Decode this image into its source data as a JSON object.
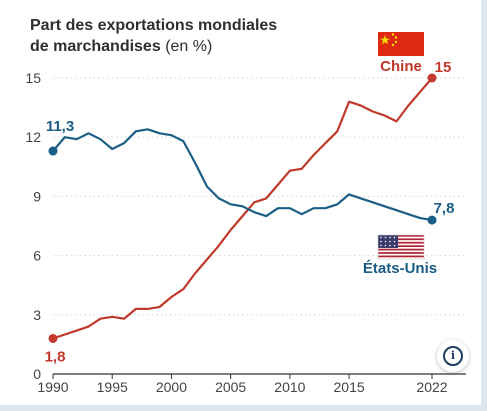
{
  "title_line1": "Part des exportations mondiales",
  "title_line2": "de marchandises",
  "title_unit": "(en %)",
  "info_icon": "info-icon",
  "chart_data": {
    "type": "line",
    "ylim": [
      0,
      15
    ],
    "xlim": [
      1990,
      2022
    ],
    "yticks": [
      0,
      3,
      6,
      9,
      12,
      15
    ],
    "xticks": [
      1990,
      1995,
      2000,
      2005,
      2010,
      2015,
      2022
    ],
    "grid": "horizontal",
    "series": [
      {
        "name": "Chine",
        "color": "#c0392b",
        "flag": "china-flag",
        "start_label": "1,8",
        "end_label": "15",
        "points": [
          [
            1990,
            1.8
          ],
          [
            1991,
            2.0
          ],
          [
            1992,
            2.2
          ],
          [
            1993,
            2.4
          ],
          [
            1994,
            2.8
          ],
          [
            1995,
            2.9
          ],
          [
            1996,
            2.8
          ],
          [
            1997,
            3.3
          ],
          [
            1998,
            3.3
          ],
          [
            1999,
            3.4
          ],
          [
            2000,
            3.9
          ],
          [
            2001,
            4.3
          ],
          [
            2002,
            5.1
          ],
          [
            2003,
            5.8
          ],
          [
            2004,
            6.5
          ],
          [
            2005,
            7.3
          ],
          [
            2006,
            8.0
          ],
          [
            2007,
            8.7
          ],
          [
            2008,
            8.9
          ],
          [
            2009,
            9.6
          ],
          [
            2010,
            10.3
          ],
          [
            2011,
            10.4
          ],
          [
            2012,
            11.1
          ],
          [
            2013,
            11.7
          ],
          [
            2014,
            12.3
          ],
          [
            2015,
            13.8
          ],
          [
            2016,
            13.6
          ],
          [
            2017,
            13.3
          ],
          [
            2018,
            13.1
          ],
          [
            2019,
            12.8
          ],
          [
            2020,
            13.6
          ],
          [
            2021,
            14.3
          ],
          [
            2022,
            15.0
          ]
        ]
      },
      {
        "name": "États-Unis",
        "color": "#1a5e85",
        "flag": "usa-flag",
        "start_label": "11,3",
        "end_label": "7,8",
        "points": [
          [
            1990,
            11.3
          ],
          [
            1991,
            12.0
          ],
          [
            1992,
            11.9
          ],
          [
            1993,
            12.2
          ],
          [
            1994,
            11.9
          ],
          [
            1995,
            11.4
          ],
          [
            1996,
            11.7
          ],
          [
            1997,
            12.3
          ],
          [
            1998,
            12.4
          ],
          [
            1999,
            12.2
          ],
          [
            2000,
            12.1
          ],
          [
            2001,
            11.8
          ],
          [
            2002,
            10.7
          ],
          [
            2003,
            9.5
          ],
          [
            2004,
            8.9
          ],
          [
            2005,
            8.6
          ],
          [
            2006,
            8.5
          ],
          [
            2007,
            8.2
          ],
          [
            2008,
            8.0
          ],
          [
            2009,
            8.4
          ],
          [
            2010,
            8.4
          ],
          [
            2011,
            8.1
          ],
          [
            2012,
            8.4
          ],
          [
            2013,
            8.4
          ],
          [
            2014,
            8.6
          ],
          [
            2015,
            9.1
          ],
          [
            2016,
            8.9
          ],
          [
            2017,
            8.7
          ],
          [
            2018,
            8.5
          ],
          [
            2019,
            8.3
          ],
          [
            2020,
            8.1
          ],
          [
            2021,
            7.9
          ],
          [
            2022,
            7.8
          ]
        ]
      }
    ]
  }
}
